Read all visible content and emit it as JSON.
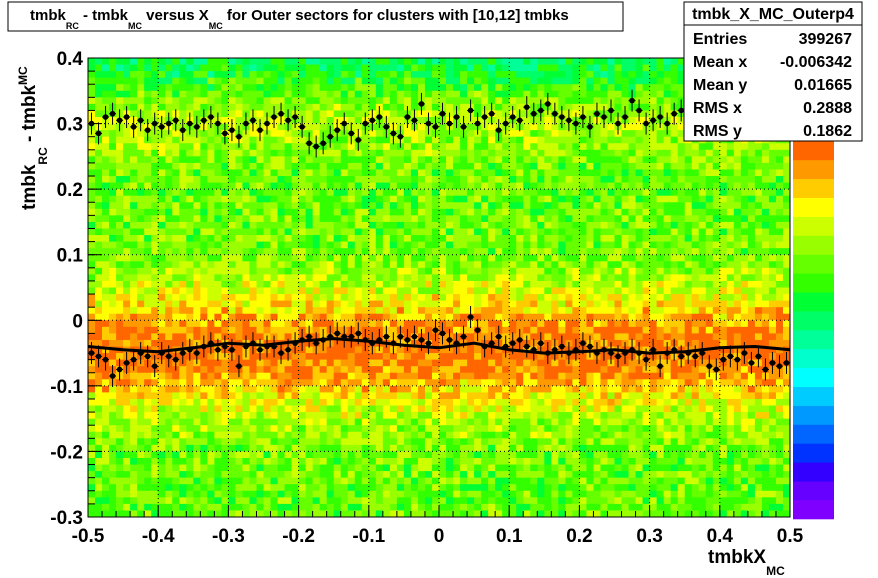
{
  "chart_data": {
    "type": "heatmap",
    "title": {
      "parts": [
        {
          "text": "tmbk",
          "sub": "RC"
        },
        {
          "text": " - tmbk",
          "sub": "MC"
        },
        {
          "text": " versus X",
          "sub": "MC"
        },
        {
          "text": " for Outer sectors for clusters with [10,12] tmbks",
          "sub": ""
        }
      ]
    },
    "xlabel": {
      "main": "tmbkX",
      "sub": "MC"
    },
    "ylabel": {
      "parts": [
        {
          "text": "tmbk",
          "sub": "RC"
        },
        {
          "text": " - tmbk",
          "sub": "MC"
        }
      ]
    },
    "xlim": [
      -0.5,
      0.5
    ],
    "ylim": [
      -0.3,
      0.4
    ],
    "x_ticks": [
      "-0.5",
      "-0.4",
      "-0.3",
      "-0.2",
      "-0.1",
      "0",
      "0.1",
      "0.2",
      "0.3",
      "0.4",
      "0.5"
    ],
    "y_ticks": [
      "-0.3",
      "-0.2",
      "-0.1",
      "0",
      "0.1",
      "0.2",
      "0.3",
      "0.4"
    ],
    "grid": true,
    "colors": {
      "palette": [
        "#7f00ff",
        "#6600ff",
        "#3300ff",
        "#0033ff",
        "#0066ff",
        "#0099ff",
        "#00ccff",
        "#00ffff",
        "#00ffcc",
        "#00ff99",
        "#00ff66",
        "#00ff33",
        "#33ff00",
        "#66ff00",
        "#99ff00",
        "#ccff00",
        "#ffff00",
        "#ffcc00",
        "#ff9900",
        "#ff6600"
      ],
      "marker": "#000000",
      "fit_line": "#000000"
    },
    "stats": {
      "name": "tmbk_X_MC_Outerp4",
      "rows": [
        {
          "label": "Entries",
          "value": "399267"
        },
        {
          "label": "Mean x",
          "value": "-0.006342"
        },
        {
          "label": "Mean y",
          "value": "0.01665"
        },
        {
          "label": "RMS x",
          "value": "0.2888"
        },
        {
          "label": "RMS y",
          "value": "0.1862"
        }
      ]
    },
    "upper_profile": {
      "x": [
        -0.495,
        -0.485,
        -0.475,
        -0.465,
        -0.455,
        -0.445,
        -0.435,
        -0.425,
        -0.415,
        -0.405,
        -0.395,
        -0.385,
        -0.375,
        -0.365,
        -0.355,
        -0.345,
        -0.335,
        -0.325,
        -0.315,
        -0.305,
        -0.295,
        -0.285,
        -0.275,
        -0.265,
        -0.255,
        -0.245,
        -0.235,
        -0.225,
        -0.215,
        -0.205,
        -0.195,
        -0.185,
        -0.175,
        -0.165,
        -0.155,
        -0.145,
        -0.135,
        -0.125,
        -0.115,
        -0.105,
        -0.095,
        -0.085,
        -0.075,
        -0.065,
        -0.055,
        -0.045,
        -0.035,
        -0.025,
        -0.015,
        -0.005,
        0.005,
        0.015,
        0.025,
        0.035,
        0.045,
        0.055,
        0.065,
        0.075,
        0.085,
        0.095,
        0.105,
        0.115,
        0.125,
        0.135,
        0.145,
        0.155,
        0.165,
        0.175,
        0.185,
        0.195,
        0.205,
        0.215,
        0.225,
        0.235,
        0.245,
        0.255,
        0.265,
        0.275,
        0.285,
        0.295,
        0.305,
        0.315,
        0.325,
        0.335,
        0.345,
        0.355,
        0.365,
        0.375,
        0.385,
        0.395,
        0.405,
        0.415,
        0.425,
        0.435,
        0.445,
        0.455,
        0.465,
        0.475,
        0.485,
        0.495
      ],
      "y": [
        0.3,
        0.285,
        0.31,
        0.315,
        0.305,
        0.31,
        0.295,
        0.305,
        0.29,
        0.3,
        0.295,
        0.3,
        0.305,
        0.29,
        0.3,
        0.295,
        0.305,
        0.31,
        0.3,
        0.285,
        0.29,
        0.28,
        0.3,
        0.305,
        0.29,
        0.3,
        0.31,
        0.315,
        0.305,
        0.31,
        0.295,
        0.27,
        0.265,
        0.27,
        0.28,
        0.29,
        0.3,
        0.285,
        0.275,
        0.3,
        0.305,
        0.31,
        0.295,
        0.285,
        0.28,
        0.31,
        0.305,
        0.33,
        0.3,
        0.295,
        0.315,
        0.3,
        0.31,
        0.295,
        0.32,
        0.3,
        0.31,
        0.315,
        0.29,
        0.3,
        0.31,
        0.305,
        0.325,
        0.315,
        0.32,
        0.33,
        0.315,
        0.31,
        0.305,
        0.3,
        0.31,
        0.295,
        0.315,
        0.31,
        0.32,
        0.3,
        0.31,
        0.335,
        0.32,
        0.3,
        0.305,
        0.31,
        0.3,
        0.315,
        0.32,
        0.31,
        0.305,
        0.315,
        0.3,
        0.29,
        0.305,
        0.31,
        0.295,
        0.3,
        0.305,
        0.31,
        0.3,
        0.305,
        0.31,
        0.3
      ]
    },
    "lower_profile": {
      "x": [
        -0.495,
        -0.485,
        -0.475,
        -0.465,
        -0.455,
        -0.445,
        -0.435,
        -0.425,
        -0.415,
        -0.405,
        -0.395,
        -0.385,
        -0.375,
        -0.365,
        -0.355,
        -0.345,
        -0.335,
        -0.325,
        -0.315,
        -0.305,
        -0.295,
        -0.285,
        -0.275,
        -0.265,
        -0.255,
        -0.245,
        -0.235,
        -0.225,
        -0.215,
        -0.205,
        -0.195,
        -0.185,
        -0.175,
        -0.165,
        -0.155,
        -0.145,
        -0.135,
        -0.125,
        -0.115,
        -0.105,
        -0.095,
        -0.085,
        -0.075,
        -0.065,
        -0.055,
        -0.045,
        -0.035,
        -0.025,
        -0.015,
        -0.005,
        0.005,
        0.015,
        0.025,
        0.035,
        0.045,
        0.055,
        0.065,
        0.075,
        0.085,
        0.095,
        0.105,
        0.115,
        0.125,
        0.135,
        0.145,
        0.155,
        0.165,
        0.175,
        0.185,
        0.195,
        0.205,
        0.215,
        0.225,
        0.235,
        0.245,
        0.255,
        0.265,
        0.275,
        0.285,
        0.295,
        0.305,
        0.315,
        0.325,
        0.335,
        0.345,
        0.355,
        0.365,
        0.375,
        0.385,
        0.395,
        0.405,
        0.415,
        0.425,
        0.435,
        0.445,
        0.455,
        0.465,
        0.475,
        0.485,
        0.495
      ],
      "y": [
        -0.05,
        -0.055,
        -0.06,
        -0.085,
        -0.075,
        -0.065,
        -0.06,
        -0.05,
        -0.055,
        -0.07,
        -0.05,
        -0.055,
        -0.06,
        -0.05,
        -0.045,
        -0.05,
        -0.04,
        -0.035,
        -0.045,
        -0.04,
        -0.045,
        -0.07,
        -0.04,
        -0.035,
        -0.045,
        -0.04,
        -0.04,
        -0.05,
        -0.045,
        -0.035,
        -0.03,
        -0.025,
        -0.035,
        -0.03,
        -0.025,
        -0.02,
        -0.025,
        -0.025,
        -0.02,
        -0.03,
        -0.035,
        -0.03,
        -0.025,
        -0.035,
        -0.025,
        -0.03,
        -0.025,
        -0.03,
        -0.035,
        -0.015,
        -0.02,
        -0.03,
        -0.035,
        -0.025,
        0.005,
        -0.015,
        -0.04,
        -0.035,
        -0.025,
        -0.04,
        -0.035,
        -0.03,
        -0.04,
        -0.045,
        -0.035,
        -0.05,
        -0.045,
        -0.04,
        -0.05,
        -0.045,
        -0.035,
        -0.04,
        -0.05,
        -0.045,
        -0.05,
        -0.055,
        -0.05,
        -0.045,
        -0.05,
        -0.06,
        -0.045,
        -0.07,
        -0.05,
        -0.045,
        -0.055,
        -0.05,
        -0.055,
        -0.05,
        -0.07,
        -0.075,
        -0.06,
        -0.055,
        -0.06,
        -0.05,
        -0.065,
        -0.055,
        -0.075,
        -0.065,
        -0.07,
        -0.065
      ]
    },
    "fit_line": {
      "x": [
        -0.5,
        -0.45,
        -0.4,
        -0.35,
        -0.3,
        -0.25,
        -0.2,
        -0.15,
        -0.1,
        -0.05,
        0.0,
        0.05,
        0.1,
        0.15,
        0.2,
        0.25,
        0.3,
        0.35,
        0.4,
        0.45,
        0.5
      ],
      "y": [
        -0.04,
        -0.045,
        -0.048,
        -0.042,
        -0.035,
        -0.038,
        -0.032,
        -0.028,
        -0.032,
        -0.038,
        -0.042,
        -0.035,
        -0.045,
        -0.05,
        -0.048,
        -0.045,
        -0.05,
        -0.048,
        -0.042,
        -0.04,
        -0.045
      ]
    }
  }
}
